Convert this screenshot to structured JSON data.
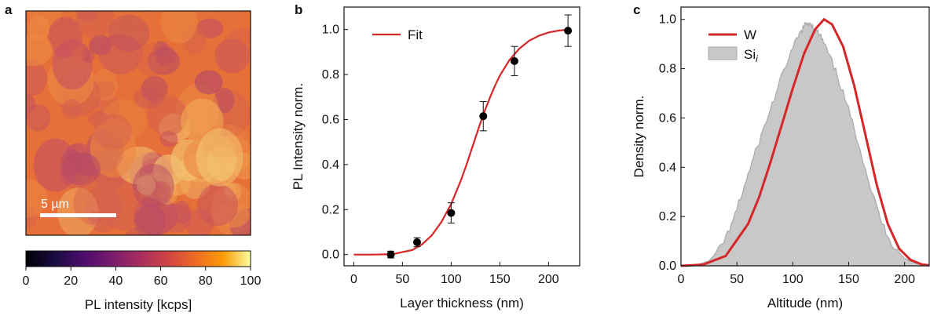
{
  "panels": {
    "a": "a",
    "b": "b",
    "c": "c"
  },
  "colors": {
    "fit": "#d62728",
    "points": "#000000",
    "hist_fill": "#c8c8c8",
    "hist_edge": "#a9a9a9"
  },
  "chart_data": [
    {
      "type": "heatmap",
      "panel": "a",
      "scale_bar_label": "5 µm",
      "colorbar": {
        "label": "PL intensity [kcps]",
        "colormap": "inferno",
        "range": [
          0,
          100
        ],
        "ticks": [
          "0",
          "20",
          "40",
          "60",
          "80",
          "100"
        ]
      },
      "intensity_range_observed": [
        50,
        95
      ]
    },
    {
      "type": "scatter",
      "panel": "b",
      "xlabel": "Layer thickness (nm)",
      "ylabel": "PL Intensity norm.",
      "xlim": [
        -10,
        232
      ],
      "ylim": [
        -0.05,
        1.1
      ],
      "xticks": [
        "0",
        "50",
        "100",
        "150",
        "200"
      ],
      "yticks": [
        "0.0",
        "0.2",
        "0.4",
        "0.6",
        "0.8",
        "1.0"
      ],
      "points": [
        {
          "x": 38,
          "y": 0.0,
          "err": 0.015
        },
        {
          "x": 65,
          "y": 0.055,
          "err": 0.02
        },
        {
          "x": 100,
          "y": 0.185,
          "err": 0.045
        },
        {
          "x": 133,
          "y": 0.615,
          "err": 0.065
        },
        {
          "x": 165,
          "y": 0.86,
          "err": 0.065
        },
        {
          "x": 220,
          "y": 0.995,
          "err": 0.07
        }
      ],
      "fit": {
        "name": "Fit",
        "x": [
          0,
          20,
          40,
          60,
          70,
          80,
          90,
          100,
          110,
          115,
          120,
          125,
          130,
          135,
          140,
          145,
          150,
          160,
          170,
          180,
          190,
          200,
          210,
          220
        ],
        "y": [
          0.0,
          0.0,
          0.002,
          0.02,
          0.045,
          0.085,
          0.145,
          0.225,
          0.33,
          0.39,
          0.455,
          0.52,
          0.585,
          0.645,
          0.7,
          0.75,
          0.795,
          0.865,
          0.915,
          0.95,
          0.972,
          0.987,
          0.995,
          1.0
        ]
      },
      "legend_position": "top-left"
    },
    {
      "type": "area",
      "panel": "c",
      "xlabel": "Altitude (nm)",
      "ylabel": "Density norm.",
      "xlim": [
        0,
        222
      ],
      "ylim": [
        0,
        1.05
      ],
      "xticks": [
        "0",
        "50",
        "100",
        "150",
        "200"
      ],
      "yticks": [
        "0.0",
        "0.2",
        "0.4",
        "0.6",
        "0.8",
        "1.0"
      ],
      "series": [
        {
          "name": "W",
          "style": "line",
          "x": [
            0,
            20,
            40,
            60,
            70,
            80,
            90,
            100,
            110,
            120,
            128,
            135,
            145,
            155,
            165,
            175,
            185,
            195,
            205,
            215,
            222
          ],
          "y": [
            0.0,
            0.005,
            0.04,
            0.17,
            0.28,
            0.42,
            0.57,
            0.72,
            0.86,
            0.96,
            1.0,
            0.98,
            0.89,
            0.73,
            0.53,
            0.33,
            0.17,
            0.07,
            0.025,
            0.006,
            0.002
          ]
        },
        {
          "name": "Si",
          "name_subscript": "i",
          "style": "filled",
          "x": [
            0,
            15,
            25,
            35,
            45,
            55,
            65,
            75,
            85,
            95,
            105,
            110,
            115,
            120,
            125,
            130,
            140,
            150,
            160,
            170,
            180,
            190,
            200,
            210,
            222
          ],
          "y": [
            0.0,
            0.005,
            0.02,
            0.07,
            0.16,
            0.3,
            0.44,
            0.57,
            0.7,
            0.83,
            0.93,
            0.97,
            0.99,
            0.96,
            0.93,
            0.88,
            0.77,
            0.63,
            0.48,
            0.31,
            0.17,
            0.08,
            0.03,
            0.01,
            0.002
          ]
        }
      ],
      "legend_position": "top-left"
    }
  ]
}
